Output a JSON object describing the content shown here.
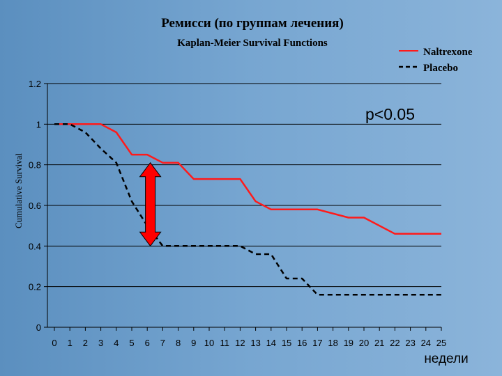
{
  "chart_data": {
    "type": "line",
    "title": "Ремисси (по группам лечения)",
    "subtitle": "Kaplan-Meier Survival Functions",
    "xlabel": "недели",
    "ylabel": "Cumulative Survival",
    "xlim": [
      0,
      25
    ],
    "ylim": [
      0,
      1.2
    ],
    "x_ticks": [
      "0",
      "1",
      "2",
      "3",
      "4",
      "5",
      "6",
      "7",
      "8",
      "9",
      "10",
      "11",
      "12",
      "13",
      "14",
      "15",
      "16",
      "17",
      "18",
      "19",
      "20",
      "21",
      "22",
      "23",
      "24",
      "25"
    ],
    "y_ticks": [
      "0",
      "0.2",
      "0.4",
      "0.6",
      "0.8",
      "1",
      "1.2"
    ],
    "grid": true,
    "legend_position": "top-right",
    "annotation": "p<0.05",
    "series": [
      {
        "name": "Naltrexone",
        "color": "#ff1a1a",
        "style": "solid",
        "points": [
          [
            0,
            1
          ],
          [
            3,
            1
          ],
          [
            4,
            0.96
          ],
          [
            5,
            0.85
          ],
          [
            6,
            0.85
          ],
          [
            7,
            0.81
          ],
          [
            8,
            0.81
          ],
          [
            9,
            0.73
          ],
          [
            12,
            0.73
          ],
          [
            13,
            0.62
          ],
          [
            14,
            0.58
          ],
          [
            17,
            0.58
          ],
          [
            19,
            0.54
          ],
          [
            20,
            0.54
          ],
          [
            22,
            0.46
          ],
          [
            25,
            0.46
          ]
        ]
      },
      {
        "name": "Placebo",
        "color": "#000000",
        "style": "dashed",
        "points": [
          [
            0,
            1
          ],
          [
            1,
            1
          ],
          [
            2,
            0.96
          ],
          [
            3,
            0.88
          ],
          [
            4,
            0.81
          ],
          [
            5,
            0.62
          ],
          [
            6,
            0.5
          ],
          [
            7,
            0.4
          ],
          [
            12,
            0.4
          ],
          [
            13,
            0.36
          ],
          [
            14,
            0.36
          ],
          [
            15,
            0.24
          ],
          [
            16,
            0.24
          ],
          [
            17,
            0.16
          ],
          [
            25,
            0.16
          ]
        ]
      }
    ],
    "arrow": {
      "x": 6.2,
      "y_from": 0.4,
      "y_to": 0.81,
      "color": "#ff0000"
    }
  }
}
